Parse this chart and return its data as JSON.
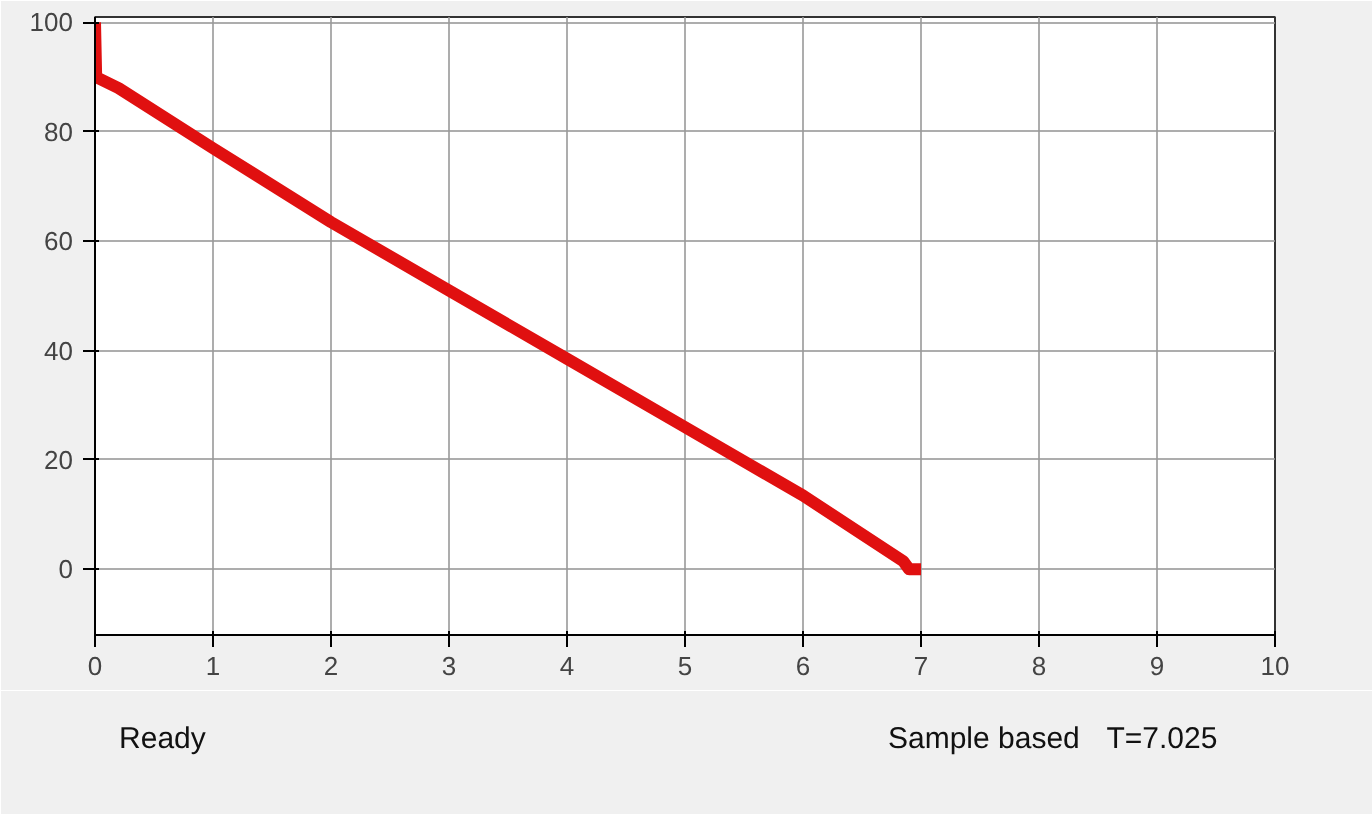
{
  "chart_data": {
    "type": "line",
    "x": [
      0,
      0.01,
      0.2,
      1,
      2,
      3,
      4,
      5,
      6,
      6.85,
      6.9,
      7.0
    ],
    "series": [
      {
        "color": "#e01010",
        "values": [
          100,
          90,
          88,
          77,
          63.5,
          51,
          38.5,
          26,
          13.5,
          1.5,
          0,
          0
        ]
      }
    ],
    "xlim": [
      0,
      10
    ],
    "xticks": [
      0,
      1,
      2,
      3,
      4,
      5,
      6,
      7,
      8,
      9,
      10
    ],
    "ylim": [
      -12,
      101
    ],
    "yticks": [
      0,
      20,
      40,
      60,
      80,
      100
    ],
    "grid": true,
    "marker": "none",
    "line_style": "solid",
    "annotations": [
      "Ready",
      "Sample based",
      "T=7.025"
    ]
  }
}
